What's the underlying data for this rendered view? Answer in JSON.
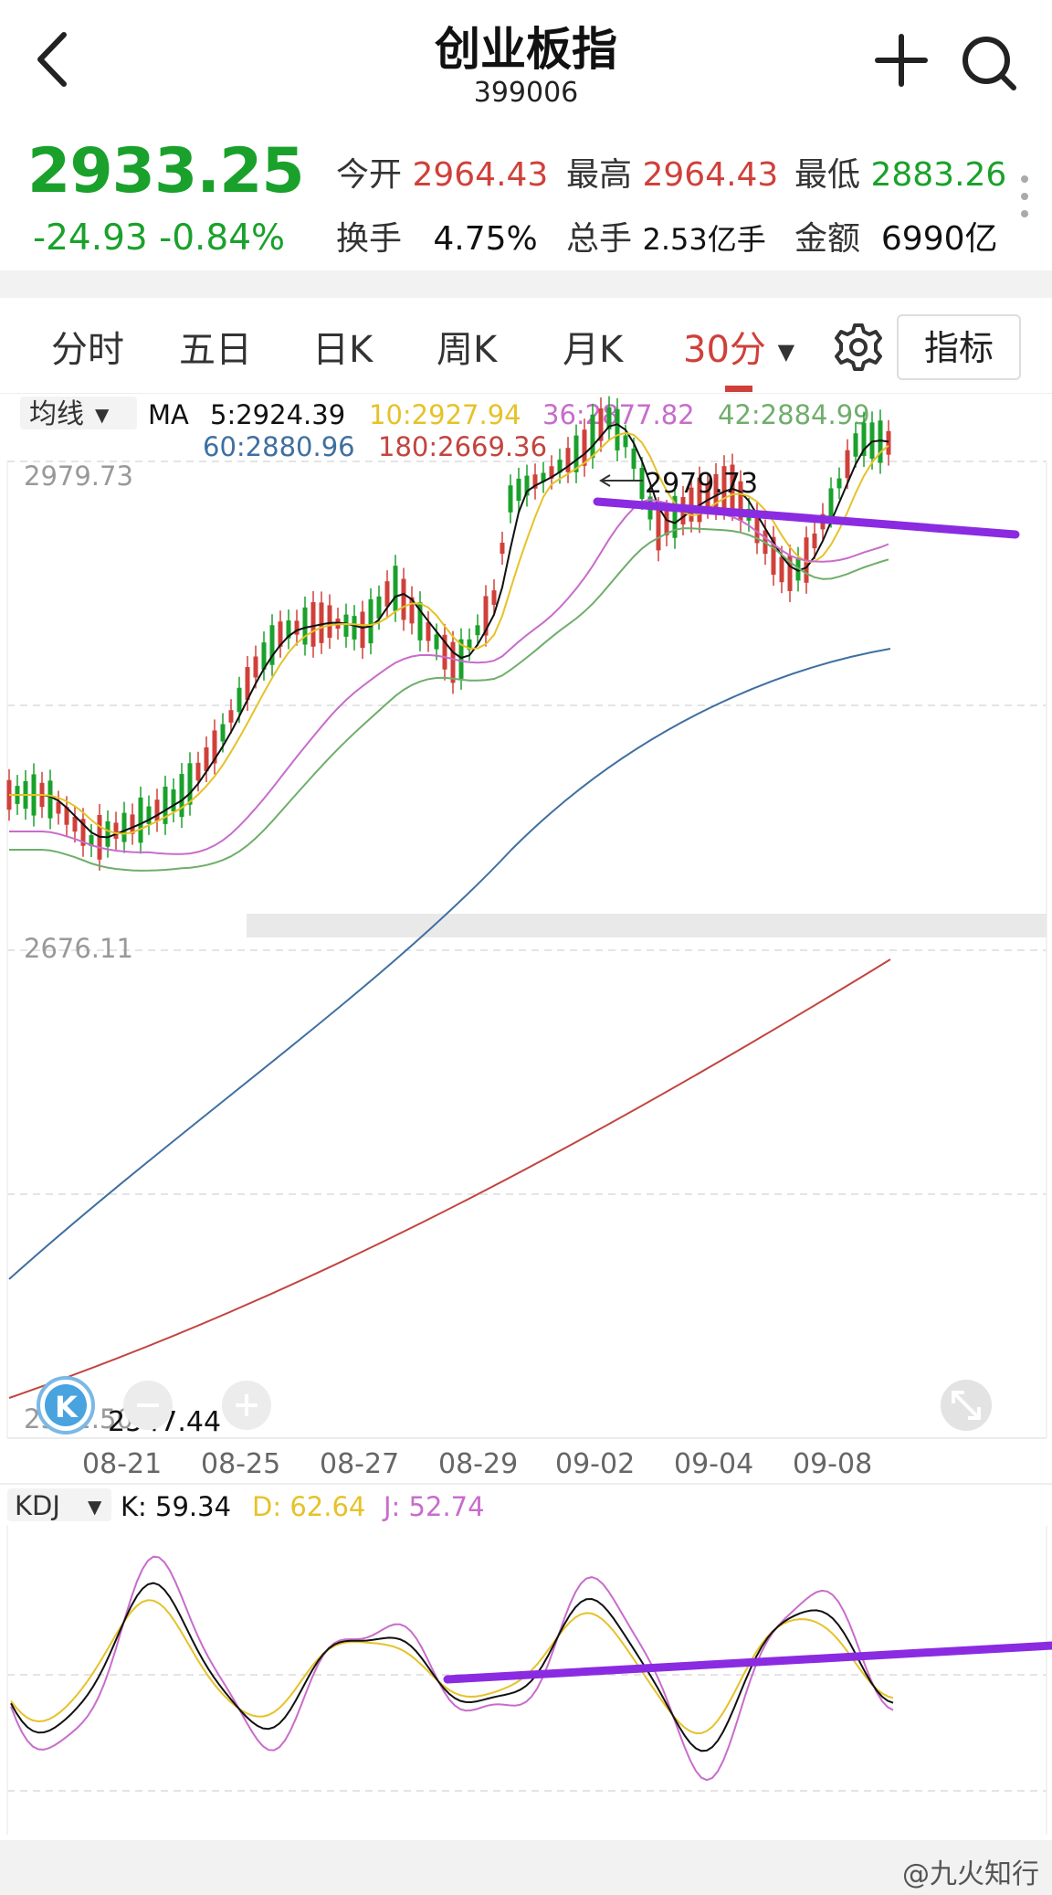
{
  "header": {
    "title": "创业板指",
    "code": "399006",
    "icons": [
      "back-arrow-icon",
      "plus-icon",
      "search-icon"
    ]
  },
  "quote": {
    "price": "2933.25",
    "change": "-24.93",
    "change_pct": "-0.84%",
    "open_label": "今开",
    "open": "2964.43",
    "high_label": "最高",
    "high": "2964.43",
    "low_label": "最低",
    "low": "2883.26",
    "turnover_label": "换手",
    "turnover": "4.75%",
    "volume_label": "总手",
    "volume": "2.53亿手",
    "amount_label": "金额",
    "amount": "6990亿"
  },
  "tabs": [
    "分时",
    "五日",
    "日K",
    "周K",
    "月K",
    "30分"
  ],
  "active_tab": "30分",
  "indicator_button": "指标",
  "ma_panel": {
    "selector": "均线",
    "label": "MA",
    "ma5": "5:2924.39",
    "ma10": "10:2927.94",
    "ma36": "36:2877.82",
    "ma42": "42:2884.99",
    "ma60": "60:2880.96",
    "ma180": "180:2669.36",
    "y_top": "2979.73",
    "y_mid": "2676.11",
    "y_bottom": "2372.50",
    "high_marker": "2979.73",
    "low_marker": "2547.44",
    "x_labels": [
      "08-21",
      "08-25",
      "08-27",
      "08-29",
      "09-02",
      "09-04",
      "09-08"
    ]
  },
  "kdj_panel": {
    "selector": "KDJ",
    "k": "K: 59.34",
    "d": "D: 62.64",
    "j": "J: 52.74"
  },
  "colors": {
    "up": "#d0403a",
    "down": "#1aa12b",
    "ma5": "#111111",
    "ma10": "#e6c229",
    "ma36": "#c86ccc",
    "ma42": "#6fae6b",
    "ma60": "#3f6fa0",
    "ma180": "#c2443f",
    "trendline": "#8a2be2"
  },
  "watermark": "@九火知行"
}
